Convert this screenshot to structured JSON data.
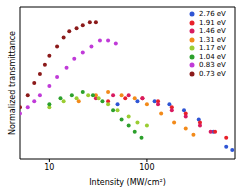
{
  "chart_data": {
    "type": "scatter",
    "x_label": "Intensity (MW/cm²)",
    "y_label": "Normalized transmittance",
    "log": "x",
    "xlim": [
      5,
      800
    ],
    "xticks": [
      10,
      100
    ],
    "ylim": [
      0.85,
      1.35
    ],
    "yticks": [
      0.9,
      1,
      1.1,
      1.2,
      1.3
    ],
    "tick_labels": "x",
    "grid": false,
    "legend": "upper right",
    "marker": "circle",
    "series": [
      {
        "name": "2.76 eV",
        "color": "#2f55d4",
        "x": [
          50,
          80,
          120,
          170,
          240,
          340,
          480,
          650,
          750
        ],
        "values": [
          1.03,
          1.04,
          1.04,
          1.03,
          1.01,
          0.98,
          0.94,
          0.89,
          0.88
        ]
      },
      {
        "name": "1.91 eV",
        "color": "#e8202a",
        "x": [
          40,
          60,
          90,
          130,
          180,
          250,
          350,
          500,
          650
        ],
        "values": [
          1.04,
          1.05,
          1.05,
          1.04,
          1.02,
          1.0,
          0.97,
          0.94,
          0.92
        ]
      },
      {
        "name": "1.46 eV",
        "color": "#d81b60",
        "x": [
          30,
          45,
          65,
          90,
          130,
          180,
          250,
          350,
          450
        ],
        "values": [
          1.05,
          1.06,
          1.06,
          1.05,
          1.03,
          1.01,
          0.99,
          0.96,
          0.94
        ]
      },
      {
        "name": "1.31 eV",
        "color": "#f28a1a",
        "x": [
          20,
          30,
          40,
          55,
          75,
          100,
          140,
          190,
          250,
          300
        ],
        "values": [
          1.04,
          1.06,
          1.07,
          1.06,
          1.05,
          1.03,
          1.0,
          0.97,
          0.95,
          0.93
        ]
      },
      {
        "name": "1.17 eV",
        "color": "#9acd32",
        "x": [
          10,
          14,
          19,
          25,
          32,
          40,
          50,
          65,
          80,
          100
        ],
        "values": [
          1.02,
          1.04,
          1.05,
          1.06,
          1.05,
          1.03,
          1.01,
          0.99,
          0.97,
          0.96
        ]
      },
      {
        "name": "1.04 eV",
        "color": "#2ca02c",
        "x": [
          10,
          13,
          17,
          22,
          28,
          35,
          45,
          55,
          65,
          75,
          88
        ],
        "values": [
          1.03,
          1.05,
          1.06,
          1.07,
          1.06,
          1.04,
          1.01,
          0.98,
          0.96,
          0.94,
          0.92
        ]
      },
      {
        "name": "0.83 eV",
        "color": "#c03ad8",
        "x": [
          5,
          6,
          7,
          8,
          10,
          12,
          15,
          18,
          22,
          27,
          33,
          40,
          48
        ],
        "values": [
          1.0,
          1.02,
          1.04,
          1.06,
          1.09,
          1.12,
          1.15,
          1.18,
          1.2,
          1.22,
          1.24,
          1.24,
          1.23
        ]
      },
      {
        "name": "0.73 eV",
        "color": "#8b1a1a",
        "x": [
          5,
          6,
          7,
          8,
          9,
          10,
          12,
          14,
          16,
          19,
          22,
          26,
          30
        ],
        "values": [
          1.02,
          1.06,
          1.1,
          1.13,
          1.16,
          1.19,
          1.22,
          1.25,
          1.27,
          1.28,
          1.29,
          1.3,
          1.3
        ]
      }
    ]
  }
}
